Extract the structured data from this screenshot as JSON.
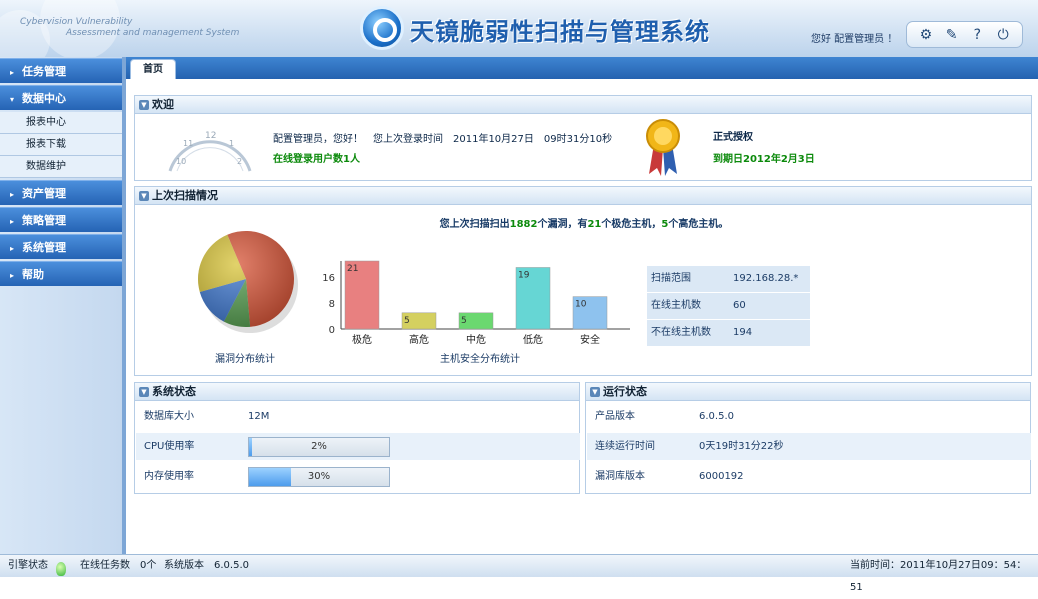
{
  "header": {
    "en_line1": "Cybervision Vulnerability",
    "en_line2": "Assessment and management System",
    "title": "天镜脆弱性扫描与管理系统",
    "greeting": "您好 配置管理员 ！"
  },
  "toolbar": [
    {
      "icon": "settings-icon",
      "glyph": "⚙"
    },
    {
      "icon": "tools-icon",
      "glyph": "✎"
    },
    {
      "icon": "help-icon",
      "glyph": "?"
    },
    {
      "icon": "logout-icon",
      "glyph": "⏻"
    }
  ],
  "tabs": [
    {
      "label": "首页"
    }
  ],
  "sidebar": {
    "menus": [
      {
        "label": "任务管理",
        "expanded": false
      },
      {
        "label": "数据中心",
        "expanded": true,
        "children": [
          "报表中心",
          "报表下载",
          "数据维护"
        ]
      },
      {
        "label": "资产管理",
        "expanded": false
      },
      {
        "label": "策略管理",
        "expanded": false
      },
      {
        "label": "系统管理",
        "expanded": false
      },
      {
        "label": "帮助",
        "expanded": false
      }
    ]
  },
  "welcome": {
    "title": "欢迎",
    "line1": "配置管理员，您好！　您上次登录时间　2011年10月27日　09时31分10秒",
    "online": "在线登录用户数1人",
    "license_title": "正式授权",
    "license_expiry": "到期日2012年2月3日"
  },
  "scan": {
    "title": "上次扫描情况",
    "summary_parts": [
      "您上次扫描扫出",
      "1882",
      "个漏洞，有",
      "21",
      "个极危主机，",
      "5",
      "个高危主机。"
    ],
    "pie_caption": "漏洞分布统计",
    "bar_caption": "主机安全分布统计",
    "info": [
      {
        "label": "扫描范围",
        "value": "192.168.28.*"
      },
      {
        "label": "在线主机数",
        "value": "60"
      },
      {
        "label": "不在线主机数",
        "value": "194"
      }
    ]
  },
  "chart_data": [
    {
      "type": "bar",
      "categories": [
        "极危",
        "高危",
        "中危",
        "低危",
        "安全"
      ],
      "values": [
        21,
        5,
        5,
        19,
        10
      ],
      "colors": [
        "#e88080",
        "#d4d060",
        "#6bd870",
        "#66d6d4",
        "#8ec2ee"
      ],
      "yticks": [
        0,
        8,
        16
      ],
      "ylim": [
        0,
        21
      ],
      "xlabel": "主机安全分布统计"
    },
    {
      "type": "pie",
      "slices": [
        {
          "value": 0.55,
          "color": "#d9573a"
        },
        {
          "value": 0.09,
          "color": "#58a052"
        },
        {
          "value": 0.13,
          "color": "#3f78cf"
        },
        {
          "value": 0.23,
          "color": "#d8c43a"
        }
      ],
      "xlabel": "漏洞分布统计"
    }
  ],
  "system_status": {
    "title": "系统状态",
    "rows": [
      {
        "label": "数据库大小",
        "value": "12M"
      },
      {
        "label": "CPU使用率",
        "value": "2%",
        "percent": 2
      },
      {
        "label": "内存使用率",
        "value": "30%",
        "percent": 30
      }
    ]
  },
  "run_status": {
    "title": "运行状态",
    "rows": [
      {
        "label": "产品版本",
        "value": "6.0.5.0"
      },
      {
        "label": "连续运行时间",
        "value": "0天19时31分22秒"
      },
      {
        "label": "漏洞库版本",
        "value": "6000192"
      }
    ]
  },
  "statusbar": {
    "engine_label": "引擎状态",
    "online_tasks": "在线任务数　0个",
    "version": "系统版本　6.0.5.0",
    "current_time": "当前时间：2011年10月27日09：54：51"
  }
}
